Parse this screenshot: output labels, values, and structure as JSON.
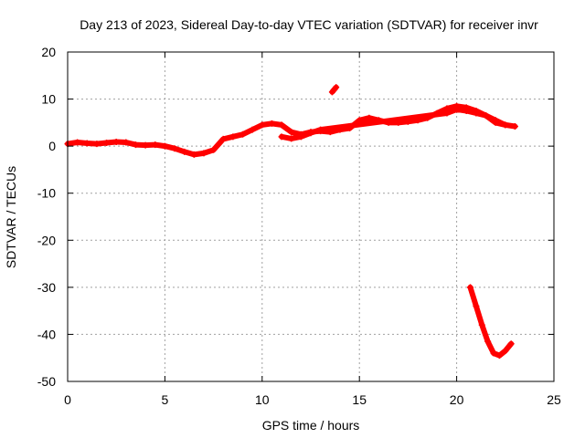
{
  "chart_data": {
    "type": "scatter",
    "title": "Day 213 of 2023, Sidereal Day-to-day VTEC variation (SDTVAR) for receiver invr",
    "xlabel": "GPS time / hours",
    "ylabel": "SDTVAR / TECUs",
    "xlim": [
      0,
      25
    ],
    "ylim": [
      -50,
      20
    ],
    "xticks": [
      0,
      5,
      10,
      15,
      20,
      25
    ],
    "yticks": [
      -50,
      -40,
      -30,
      -20,
      -10,
      0,
      10,
      20
    ],
    "xtick_labels": [
      "0",
      "5",
      "10",
      "15",
      "20",
      "25"
    ],
    "ytick_labels": [
      "-50",
      "-40",
      "-30",
      "-20",
      "-10",
      "0",
      "10",
      "20"
    ],
    "grid": true,
    "marker": "plus",
    "color": "#ff0000",
    "series": [
      {
        "name": "main",
        "x": [
          0.0,
          0.5,
          1.0,
          1.5,
          2.0,
          2.5,
          3.0,
          3.5,
          4.0,
          4.5,
          5.0,
          5.5,
          6.0,
          6.5,
          7.0,
          7.5,
          8.0,
          8.5,
          9.0,
          9.5,
          10.0,
          10.5,
          11.0,
          11.5,
          12.0,
          12.5,
          13.0,
          13.5,
          14.0,
          14.5,
          15.0,
          15.5,
          16.0,
          16.5,
          17.0,
          17.5,
          18.0,
          18.5,
          19.0,
          19.5,
          20.0,
          20.5,
          21.0,
          21.5,
          22.0,
          22.5,
          23.0
        ],
        "y": [
          0.5,
          0.8,
          0.6,
          0.5,
          0.7,
          0.9,
          0.8,
          0.3,
          0.2,
          0.3,
          0.0,
          -0.5,
          -1.2,
          -1.8,
          -1.5,
          -0.8,
          1.5,
          2.0,
          2.5,
          3.5,
          4.5,
          4.8,
          4.5,
          3.0,
          2.5,
          3.0,
          3.2,
          3.0,
          3.5,
          3.8,
          5.5,
          6.0,
          5.5,
          5.0,
          5.0,
          5.2,
          5.5,
          6.0,
          7.0,
          8.0,
          8.5,
          8.2,
          7.5,
          6.5,
          5.0,
          4.5,
          4.2
        ]
      },
      {
        "name": "secondary",
        "x": [
          11.0,
          11.5,
          12.0,
          12.5,
          13.0,
          19.5,
          20.0,
          20.5,
          21.0,
          21.5,
          22.0,
          22.5
        ],
        "y": [
          2.0,
          1.6,
          2.0,
          2.8,
          3.5,
          7.0,
          7.8,
          7.5,
          7.0,
          6.5,
          5.5,
          4.5
        ]
      },
      {
        "name": "outlier",
        "x": [
          13.6,
          13.7,
          13.8
        ],
        "y": [
          11.5,
          12.0,
          12.5
        ]
      },
      {
        "name": "dip",
        "x": [
          20.7,
          21.0,
          21.3,
          21.6,
          21.9,
          22.2,
          22.5,
          22.8
        ],
        "y": [
          -30.0,
          -34.0,
          -38.0,
          -41.5,
          -44.0,
          -44.5,
          -43.5,
          -42.0
        ]
      }
    ]
  }
}
